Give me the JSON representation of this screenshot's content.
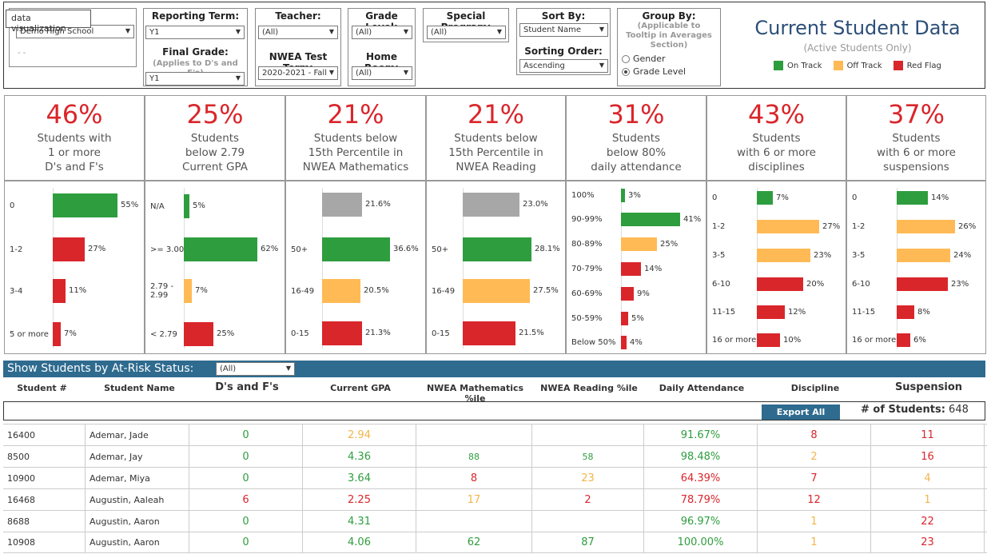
{
  "tooltip": "data visualization",
  "filters": {
    "school": {
      "value": "Demo High School"
    },
    "reporting_term": {
      "label": "Reporting Term:",
      "value": "Y1"
    },
    "final_grade": {
      "label": "Final Grade:",
      "sub": "(Applies to D's and F's)",
      "value": "Y1"
    },
    "teacher": {
      "label": "Teacher:",
      "value": "(All)"
    },
    "nwea_term": {
      "label": "NWEA Test Term:",
      "value": "2020-2021 - Fall"
    },
    "grade_level": {
      "label": "Grade Level:",
      "value": "(All)"
    },
    "home_room": {
      "label": "Home Room:",
      "value": "(All)"
    },
    "special_program": {
      "label": "Special Program:",
      "value": "(All)"
    },
    "sort_by": {
      "label": "Sort By:",
      "value": "Student Name"
    },
    "sorting_order": {
      "label": "Sorting Order:",
      "value": "Ascending"
    },
    "group_by": {
      "label": "Group By:",
      "sub": "(Applicable to Tooltip in Averages Section)",
      "options": [
        "Gender",
        "Grade Level"
      ],
      "selected": "Grade Level"
    }
  },
  "header": {
    "title": "Current Student Data",
    "subtitle": "(Active Students Only)"
  },
  "legend": [
    {
      "label": "On Track",
      "color": "#2e9d3e"
    },
    {
      "label": "Off Track",
      "color": "#ffba55"
    },
    {
      "label": "Red Flag",
      "color": "#d9262b"
    }
  ],
  "kpis": [
    {
      "pct": "46%",
      "lines": [
        "Students with",
        "1 or more",
        "D's and F's"
      ]
    },
    {
      "pct": "25%",
      "lines": [
        "Students",
        "below 2.79",
        "Current GPA"
      ]
    },
    {
      "pct": "21%",
      "lines": [
        "Students below",
        "15th Percentile in",
        "NWEA Mathematics"
      ]
    },
    {
      "pct": "21%",
      "lines": [
        "Students below",
        "15th Percentile in",
        "NWEA Reading"
      ]
    },
    {
      "pct": "31%",
      "lines": [
        "Students",
        "below 80%",
        "daily attendance"
      ]
    },
    {
      "pct": "43%",
      "lines": [
        "Students",
        "with 6 or more",
        "disciplines"
      ]
    },
    {
      "pct": "37%",
      "lines": [
        "Students",
        "with 6 or more",
        "suspensions"
      ]
    }
  ],
  "chart_data": [
    {
      "type": "bar",
      "categories": [
        "0",
        "1-2",
        "3-4",
        "5 or more"
      ],
      "values": [
        55,
        27,
        11,
        7
      ],
      "labels": [
        "55%",
        "27%",
        "11%",
        "7%"
      ],
      "status": [
        "green",
        "red",
        "red",
        "red"
      ]
    },
    {
      "type": "bar",
      "categories": [
        "N/A",
        ">= 3.00",
        "2.79 - 2.99",
        "< 2.79"
      ],
      "values": [
        5,
        62,
        7,
        25
      ],
      "labels": [
        "5%",
        "62%",
        "7%",
        "25%"
      ],
      "status": [
        "green",
        "green",
        "orange",
        "red"
      ]
    },
    {
      "type": "bar",
      "categories": [
        "",
        "50+",
        "16-49",
        "0-15"
      ],
      "values": [
        21.6,
        36.6,
        20.5,
        21.3
      ],
      "labels": [
        "21.6%",
        "36.6%",
        "20.5%",
        "21.3%"
      ],
      "status": [
        "gray",
        "green",
        "orange",
        "red"
      ]
    },
    {
      "type": "bar",
      "categories": [
        "",
        "50+",
        "16-49",
        "0-15"
      ],
      "values": [
        23.0,
        28.1,
        27.5,
        21.5
      ],
      "labels": [
        "23.0%",
        "28.1%",
        "27.5%",
        "21.5%"
      ],
      "status": [
        "gray",
        "green",
        "orange",
        "red"
      ]
    },
    {
      "type": "bar",
      "categories": [
        "100%",
        "90-99%",
        "80-89%",
        "70-79%",
        "60-69%",
        "50-59%",
        "Below 50%"
      ],
      "values": [
        3,
        41,
        25,
        14,
        9,
        5,
        4
      ],
      "labels": [
        "3%",
        "41%",
        "25%",
        "14%",
        "9%",
        "5%",
        "4%"
      ],
      "status": [
        "green",
        "green",
        "orange",
        "red",
        "red",
        "red",
        "red"
      ]
    },
    {
      "type": "bar",
      "categories": [
        "0",
        "1-2",
        "3-5",
        "6-10",
        "11-15",
        "16 or more"
      ],
      "values": [
        7,
        27,
        23,
        20,
        12,
        10
      ],
      "labels": [
        "7%",
        "27%",
        "23%",
        "20%",
        "12%",
        "10%"
      ],
      "status": [
        "green",
        "orange",
        "orange",
        "red",
        "red",
        "red"
      ]
    },
    {
      "type": "bar",
      "categories": [
        "0",
        "1-2",
        "3-5",
        "6-10",
        "11-15",
        "16 or more"
      ],
      "values": [
        14,
        26,
        24,
        23,
        8,
        6
      ],
      "labels": [
        "14%",
        "26%",
        "24%",
        "23%",
        "8%",
        "6%"
      ],
      "status": [
        "green",
        "orange",
        "orange",
        "red",
        "red",
        "red"
      ]
    }
  ],
  "atrisk": {
    "label": "Show Students by At-Risk Status:",
    "value": "(All)"
  },
  "columns": [
    "Student #",
    "Student Name",
    "D's and F's",
    "Current GPA",
    "NWEA Mathematics %ile",
    "NWEA Reading %ile",
    "Daily Attendance",
    "Discipline",
    "Suspension"
  ],
  "export_label": "Export All",
  "count": {
    "label": "# of Students:",
    "value": "648"
  },
  "students": [
    {
      "id": "16400",
      "name": "Ademar, Jade",
      "df": [
        "0",
        "green"
      ],
      "gpa": [
        "2.94",
        "orange"
      ],
      "math": [
        "",
        ""
      ],
      "read": [
        "",
        ""
      ],
      "att": [
        "91.67%",
        "green"
      ],
      "disc": [
        "8",
        "red"
      ],
      "susp": [
        "11",
        "red"
      ]
    },
    {
      "id": "8500",
      "name": "Ademar, Jay",
      "df": [
        "0",
        "green"
      ],
      "gpa": [
        "4.36",
        "green"
      ],
      "math": [
        "88",
        "green"
      ],
      "read": [
        "58",
        "green"
      ],
      "att": [
        "98.48%",
        "green"
      ],
      "disc": [
        "2",
        "orange"
      ],
      "susp": [
        "16",
        "red"
      ]
    },
    {
      "id": "10900",
      "name": "Ademar, Miya",
      "df": [
        "0",
        "green"
      ],
      "gpa": [
        "3.64",
        "green"
      ],
      "math": [
        "8",
        "red"
      ],
      "read": [
        "23",
        "orange"
      ],
      "att": [
        "64.39%",
        "red"
      ],
      "disc": [
        "7",
        "red"
      ],
      "susp": [
        "4",
        "orange"
      ]
    },
    {
      "id": "16468",
      "name": "Augustin, Aaleah",
      "df": [
        "6",
        "red"
      ],
      "gpa": [
        "2.25",
        "red"
      ],
      "math": [
        "17",
        "orange"
      ],
      "read": [
        "2",
        "red"
      ],
      "att": [
        "78.79%",
        "red"
      ],
      "disc": [
        "12",
        "red"
      ],
      "susp": [
        "1",
        "orange"
      ]
    },
    {
      "id": "8688",
      "name": "Augustin, Aaron",
      "df": [
        "0",
        "green"
      ],
      "gpa": [
        "4.31",
        "green"
      ],
      "math": [
        "",
        ""
      ],
      "read": [
        "",
        ""
      ],
      "att": [
        "96.97%",
        "green"
      ],
      "disc": [
        "1",
        "orange"
      ],
      "susp": [
        "22",
        "red"
      ]
    },
    {
      "id": "10908",
      "name": "Augustin, Aaron",
      "df": [
        "0",
        "green"
      ],
      "gpa": [
        "4.06",
        "green"
      ],
      "math": [
        "62",
        "green"
      ],
      "read": [
        "87",
        "green"
      ],
      "att": [
        "100.00%",
        "green"
      ],
      "disc": [
        "1",
        "orange"
      ],
      "susp": [
        "23",
        "red"
      ]
    }
  ]
}
